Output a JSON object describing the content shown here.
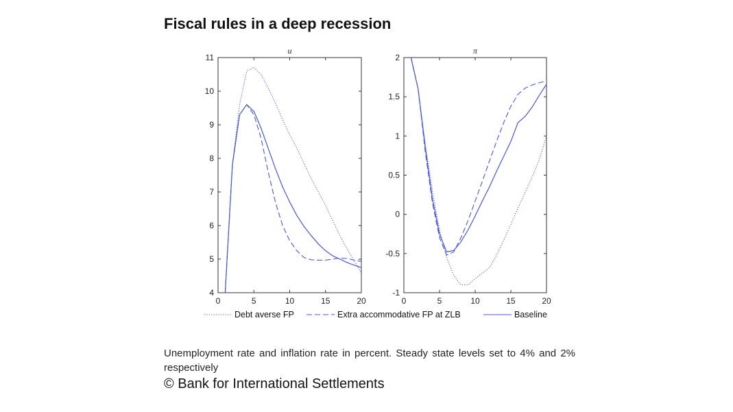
{
  "slide": {
    "title": "Fiscal rules in a deep recession",
    "caption": "Unemployment rate and inflation rate in percent. Steady state levels set to 4% and 2% respectively",
    "copyright": "© Bank for International Settlements"
  },
  "colors": {
    "line": "#4a55d6",
    "axis": "#333333"
  },
  "chart_data": [
    {
      "type": "line",
      "title": "u",
      "xlim": [
        0,
        20
      ],
      "ylim": [
        4,
        11
      ],
      "xticks": [
        0,
        5,
        10,
        15,
        20
      ],
      "yticks": [
        4,
        5,
        6,
        7,
        8,
        9,
        10,
        11
      ],
      "series": [
        {
          "name": "Debt averse FP",
          "style": "dotted",
          "x": [
            1,
            2,
            3,
            4,
            5,
            6,
            7,
            8,
            9,
            10,
            11,
            12,
            13,
            14,
            15,
            16,
            17,
            18,
            19,
            20
          ],
          "y": [
            4.0,
            7.8,
            9.6,
            10.6,
            10.7,
            10.5,
            10.1,
            9.65,
            9.15,
            8.7,
            8.3,
            7.85,
            7.4,
            7.0,
            6.6,
            6.15,
            5.7,
            5.3,
            4.95,
            4.6
          ]
        },
        {
          "name": "Extra accommodative FP at ZLB",
          "style": "dashed",
          "x": [
            1,
            2,
            3,
            4,
            5,
            6,
            7,
            8,
            9,
            10,
            11,
            12,
            13,
            14,
            15,
            16,
            17,
            18,
            19,
            20
          ],
          "y": [
            4.0,
            7.8,
            9.3,
            9.6,
            9.3,
            8.6,
            7.6,
            6.7,
            6.0,
            5.55,
            5.25,
            5.05,
            4.98,
            4.97,
            4.97,
            5.0,
            5.03,
            5.02,
            4.97,
            4.93
          ]
        },
        {
          "name": "Baseline",
          "style": "solid",
          "x": [
            1,
            2,
            3,
            4,
            5,
            6,
            7,
            8,
            9,
            10,
            11,
            12,
            13,
            14,
            15,
            16,
            17,
            18,
            19,
            20
          ],
          "y": [
            4.0,
            7.8,
            9.3,
            9.6,
            9.4,
            8.9,
            8.3,
            7.7,
            7.15,
            6.7,
            6.3,
            5.97,
            5.7,
            5.45,
            5.25,
            5.1,
            5.0,
            4.9,
            4.82,
            4.75
          ]
        }
      ]
    },
    {
      "type": "line",
      "title": "π",
      "xlim": [
        0,
        20
      ],
      "ylim": [
        -1,
        2
      ],
      "xticks": [
        0,
        5,
        10,
        15,
        20
      ],
      "yticks": [
        -1,
        -0.5,
        0,
        0.5,
        1,
        1.5,
        2
      ],
      "series": [
        {
          "name": "Debt averse FP",
          "style": "dotted",
          "x": [
            1,
            2,
            3,
            4,
            5,
            6,
            7,
            8,
            9,
            10,
            11,
            12,
            13,
            14,
            15,
            16,
            17,
            18,
            19,
            20
          ],
          "y": [
            2.0,
            1.6,
            0.9,
            0.3,
            -0.2,
            -0.55,
            -0.78,
            -0.9,
            -0.9,
            -0.82,
            -0.75,
            -0.68,
            -0.52,
            -0.33,
            -0.13,
            0.08,
            0.28,
            0.48,
            0.7,
            1.0
          ]
        },
        {
          "name": "Extra accommodative FP at ZLB",
          "style": "dashed",
          "x": [
            1,
            2,
            3,
            4,
            5,
            6,
            7,
            8,
            9,
            10,
            11,
            12,
            13,
            14,
            15,
            16,
            17,
            18,
            19,
            20
          ],
          "y": [
            2.0,
            1.6,
            0.8,
            0.15,
            -0.3,
            -0.52,
            -0.48,
            -0.3,
            -0.08,
            0.17,
            0.42,
            0.68,
            0.93,
            1.17,
            1.38,
            1.53,
            1.61,
            1.65,
            1.68,
            1.7
          ]
        },
        {
          "name": "Baseline",
          "style": "solid",
          "x": [
            1,
            2,
            3,
            4,
            5,
            6,
            7,
            8,
            9,
            10,
            11,
            12,
            13,
            14,
            15,
            16,
            17,
            18,
            19,
            20
          ],
          "y": [
            2.0,
            1.6,
            0.85,
            0.2,
            -0.25,
            -0.48,
            -0.46,
            -0.35,
            -0.2,
            -0.02,
            0.17,
            0.35,
            0.55,
            0.74,
            0.93,
            1.17,
            1.25,
            1.37,
            1.52,
            1.66
          ]
        }
      ]
    }
  ],
  "legend": {
    "placement": "bottom",
    "entries": [
      {
        "label": "Debt averse FP",
        "style": "dotted"
      },
      {
        "label": "Extra accommodative FP at ZLB",
        "style": "dashed"
      },
      {
        "label": "Baseline",
        "style": "solid"
      }
    ]
  }
}
